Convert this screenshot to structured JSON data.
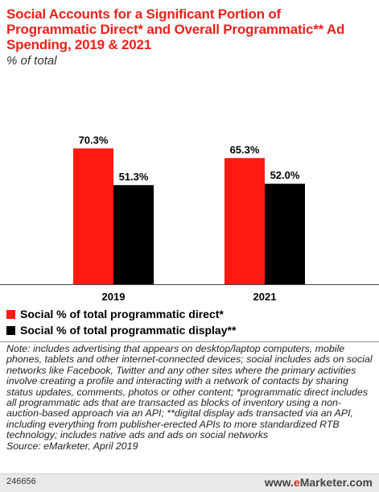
{
  "header": {
    "title": "Social Accounts for a Significant Portion of Programmatic Direct* and Overall Programmatic** Ad Spending, 2019 & 2021",
    "subtitle": "% of total"
  },
  "colors": {
    "direct": "#ff1a12",
    "display": "#000000",
    "title": "#e6231c"
  },
  "chart_data": {
    "type": "bar",
    "categories": [
      "2019",
      "2021"
    ],
    "series": [
      {
        "name": "Social % of total programmatic direct*",
        "values": [
          70.3,
          65.3
        ],
        "labels": [
          "70.3%",
          "65.3%"
        ]
      },
      {
        "name": "Social % of total programmatic display**",
        "values": [
          51.3,
          52.0
        ],
        "labels": [
          "51.3%",
          "52.0%"
        ]
      }
    ],
    "ylim": [
      0,
      100
    ],
    "grid": false,
    "legend_position": "bottom-left"
  },
  "note": "Note: includes advertising that appears on desktop/laptop computers, mobile phones, tablets and other internet-connected devices; social includes ads on social networks like Facebook, Twitter and any other sites where the primary activities involve creating a profile and interacting with a network of contacts by sharing status updates, comments, photos or other content; *programmatic direct includes all programmatic ads that are transacted as blocks of inventory using a non-auction-based approach via an API; **digital display ads transacted via an API, including everything from publisher-erected APIs to more standardized RTB technology; includes native ads and ads on social networks",
  "source": "Source: eMarketer, April 2019",
  "footer": {
    "id": "246656",
    "logo_prefix": "www.",
    "logo_brand_e": "e",
    "logo_brand_rest": "Marketer",
    "logo_suffix": ".com"
  }
}
